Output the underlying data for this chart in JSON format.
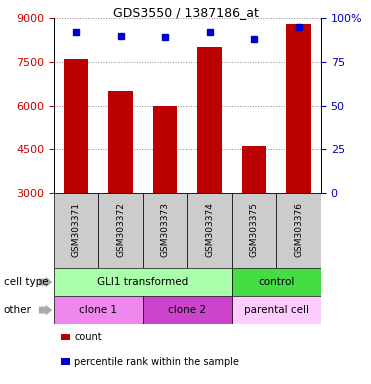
{
  "title": "GDS3550 / 1387186_at",
  "samples": [
    "GSM303371",
    "GSM303372",
    "GSM303373",
    "GSM303374",
    "GSM303375",
    "GSM303376"
  ],
  "counts": [
    7600,
    6500,
    6000,
    8000,
    4600,
    8800
  ],
  "percentile_ranks": [
    92,
    90,
    89,
    92,
    88,
    95
  ],
  "ymin": 3000,
  "ymax": 9000,
  "yticks": [
    3000,
    4500,
    6000,
    7500,
    9000
  ],
  "ytick_labels_left": [
    "3000",
    "4500",
    "6000",
    "7500",
    "9000"
  ],
  "ytick_labels_right": [
    "0",
    "25",
    "50",
    "75",
    "100%"
  ],
  "bar_color": "#bb0000",
  "dot_color": "#0000cc",
  "left_tick_color": "#cc0000",
  "right_tick_color": "#0000bb",
  "cell_type_row": {
    "label": "cell type",
    "groups": [
      {
        "text": "GLI1 transformed",
        "span": [
          0,
          4
        ],
        "color": "#aaffaa"
      },
      {
        "text": "control",
        "span": [
          4,
          6
        ],
        "color": "#44dd44"
      }
    ]
  },
  "other_row": {
    "label": "other",
    "groups": [
      {
        "text": "clone 1",
        "span": [
          0,
          2
        ],
        "color": "#ee88ee"
      },
      {
        "text": "clone 2",
        "span": [
          2,
          4
        ],
        "color": "#cc44cc"
      },
      {
        "text": "parental cell",
        "span": [
          4,
          6
        ],
        "color": "#ffccff"
      }
    ]
  },
  "legend": [
    {
      "color": "#bb0000",
      "label": "count"
    },
    {
      "color": "#0000cc",
      "label": "percentile rank within the sample"
    }
  ],
  "background_color": "#ffffff",
  "sample_bg_color": "#cccccc",
  "grid_color": "#888888"
}
